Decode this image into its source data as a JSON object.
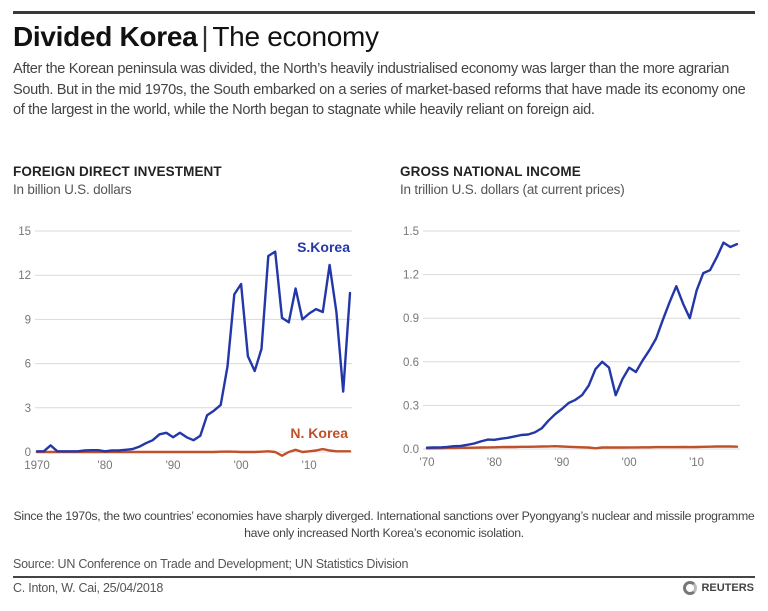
{
  "header": {
    "title_bold": "Divided Korea",
    "separator": "|",
    "title_rest": "The economy",
    "intro": "After the Korean peninsula was divided, the North’s heavily industrialised economy was larger than the more agrarian South. But in the mid 1970s, the South embarked on a series of market-based reforms that have made its economy one of the largest in the world, while the North began to stagnate while heavily reliant on foreign aid."
  },
  "footer": {
    "note": "Since the 1970s, the two countries’ economies have sharply diverged. International sanctions over Pyongyang’s nuclear and missile programme have only increased North Korea’s economic isolation.",
    "source": "Source: UN Conference on Trade and Development; UN Statistics Division",
    "credit": "C. Inton, W. Cai,  25/04/2018",
    "logo": "REUTERS"
  },
  "colors": {
    "south": "#2437a8",
    "north": "#c0502a",
    "grid": "#d9d9d9",
    "tick": "#777777"
  },
  "chart_data": [
    {
      "type": "line",
      "title": "FOREIGN DIRECT INVESTMENT",
      "subtitle": "In billion U.S. dollars",
      "xlabel": "",
      "ylabel": "In billion U.S. dollars",
      "ylim": [
        0,
        15
      ],
      "xlim": [
        1970,
        2016
      ],
      "yticks": [
        0,
        3,
        6,
        9,
        12,
        15
      ],
      "ytick_labels": [
        "0",
        "3",
        "6",
        "9",
        "12",
        "15"
      ],
      "xticks": [
        1970,
        1980,
        1990,
        2000,
        2010
      ],
      "xtick_labels": [
        "1970",
        "'80",
        "'90",
        "'00",
        "'10"
      ],
      "grid": true,
      "x": [
        1970,
        1971,
        1972,
        1973,
        1974,
        1975,
        1976,
        1977,
        1978,
        1979,
        1980,
        1981,
        1982,
        1983,
        1984,
        1985,
        1986,
        1987,
        1988,
        1989,
        1990,
        1991,
        1992,
        1993,
        1994,
        1995,
        1996,
        1997,
        1998,
        1999,
        2000,
        2001,
        2002,
        2003,
        2004,
        2005,
        2006,
        2007,
        2008,
        2009,
        2010,
        2011,
        2012,
        2013,
        2014,
        2015,
        2016
      ],
      "series": [
        {
          "name": "S.Korea",
          "label": "S.Korea",
          "values": [
            0.05,
            0.05,
            0.45,
            0.05,
            0.05,
            0.05,
            0.05,
            0.1,
            0.12,
            0.12,
            0.05,
            0.1,
            0.1,
            0.15,
            0.2,
            0.35,
            0.6,
            0.8,
            1.2,
            1.3,
            1.0,
            1.3,
            1.0,
            0.8,
            1.1,
            2.5,
            2.8,
            3.2,
            5.8,
            10.7,
            11.4,
            6.5,
            5.5,
            7.0,
            13.3,
            13.6,
            9.1,
            8.8,
            11.1,
            9.0,
            9.4,
            9.7,
            9.5,
            12.7,
            9.5,
            4.1,
            10.8
          ]
        },
        {
          "name": "N. Korea",
          "label": "N. Korea",
          "values": [
            0,
            0,
            0,
            0,
            0,
            0,
            0,
            0,
            0,
            0,
            0,
            0,
            0,
            0,
            0,
            0,
            0,
            0,
            0,
            0,
            0,
            0,
            0,
            0,
            0,
            0,
            0,
            0.02,
            0.03,
            0.02,
            0,
            0,
            0,
            0.02,
            0.05,
            0,
            -0.25,
            0,
            0.15,
            0,
            0.05,
            0.1,
            0.2,
            0.1,
            0.05,
            0.05,
            0.05
          ]
        }
      ]
    },
    {
      "type": "line",
      "title": "GROSS NATIONAL INCOME",
      "subtitle": "In trillion U.S. dollars (at current prices)",
      "xlabel": "",
      "ylabel": "In trillion U.S. dollars (at current prices)",
      "ylim": [
        0,
        1.5
      ],
      "xlim": [
        1970,
        2016
      ],
      "yticks": [
        0,
        0.3,
        0.6,
        0.9,
        1.2,
        1.5
      ],
      "ytick_labels": [
        "0.0",
        "0.3",
        "0.6",
        "0.9",
        "1.2",
        "1.5"
      ],
      "xticks": [
        1970,
        1980,
        1990,
        2000,
        2010
      ],
      "xtick_labels": [
        "'70",
        "'80",
        "'90",
        "'00",
        "'10"
      ],
      "grid": true,
      "x": [
        1970,
        1971,
        1972,
        1973,
        1974,
        1975,
        1976,
        1977,
        1978,
        1979,
        1980,
        1981,
        1982,
        1983,
        1984,
        1985,
        1986,
        1987,
        1988,
        1989,
        1990,
        1991,
        1992,
        1993,
        1994,
        1995,
        1996,
        1997,
        1998,
        1999,
        2000,
        2001,
        2002,
        2003,
        2004,
        2005,
        2006,
        2007,
        2008,
        2009,
        2010,
        2011,
        2012,
        2013,
        2014,
        2015,
        2016
      ],
      "series": [
        {
          "name": "S.Korea",
          "values": [
            0.009,
            0.01,
            0.011,
            0.014,
            0.019,
            0.021,
            0.029,
            0.038,
            0.052,
            0.065,
            0.063,
            0.071,
            0.077,
            0.087,
            0.096,
            0.1,
            0.114,
            0.142,
            0.194,
            0.239,
            0.275,
            0.316,
            0.338,
            0.37,
            0.436,
            0.55,
            0.6,
            0.56,
            0.37,
            0.48,
            0.56,
            0.53,
            0.61,
            0.68,
            0.76,
            0.89,
            1.01,
            1.12,
            1.0,
            0.9,
            1.09,
            1.21,
            1.23,
            1.32,
            1.42,
            1.39,
            1.41
          ]
        },
        {
          "name": "N. Korea",
          "values": [
            0.004,
            0.005,
            0.005,
            0.006,
            0.007,
            0.008,
            0.008,
            0.009,
            0.01,
            0.011,
            0.012,
            0.013,
            0.014,
            0.014,
            0.015,
            0.015,
            0.016,
            0.017,
            0.018,
            0.019,
            0.017,
            0.015,
            0.013,
            0.012,
            0.01,
            0.005,
            0.01,
            0.01,
            0.01,
            0.01,
            0.011,
            0.011,
            0.012,
            0.012,
            0.013,
            0.013,
            0.013,
            0.013,
            0.014,
            0.013,
            0.014,
            0.015,
            0.016,
            0.017,
            0.017,
            0.017,
            0.016
          ]
        }
      ]
    }
  ]
}
